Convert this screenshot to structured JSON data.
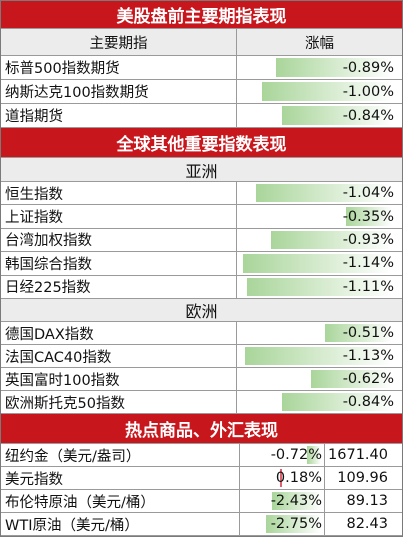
{
  "colors": {
    "header_red": "#c8161d",
    "bar_green": "#a9d59a",
    "bar_red": "#e06070"
  },
  "sec1": {
    "title": "美股盘前主要期指表现",
    "col_name": "主要期指",
    "col_change": "涨幅",
    "rows": [
      {
        "name": "标普500指数期货",
        "change": "-0.89%",
        "magnitude": 0.89
      },
      {
        "name": "纳斯达克100指数期货",
        "change": "-1.00%",
        "magnitude": 1.0
      },
      {
        "name": "道指期货",
        "change": "-0.84%",
        "magnitude": 0.84
      }
    ]
  },
  "sec2": {
    "title": "全球其他重要指数表现",
    "asia_label": "亚洲",
    "asia_rows": [
      {
        "name": "恒生指数",
        "change": "-1.04%",
        "magnitude": 1.04
      },
      {
        "name": "上证指数",
        "change": "-0.35%",
        "magnitude": 0.35
      },
      {
        "name": "台湾加权指数",
        "change": "-0.93%",
        "magnitude": 0.93
      },
      {
        "name": "韩国综合指数",
        "change": "-1.14%",
        "magnitude": 1.14
      },
      {
        "name": "日经225指数",
        "change": "-1.11%",
        "magnitude": 1.11
      }
    ],
    "europe_label": "欧洲",
    "europe_rows": [
      {
        "name": "德国DAX指数",
        "change": "-0.51%",
        "magnitude": 0.51
      },
      {
        "name": "法国CAC40指数",
        "change": "-1.13%",
        "magnitude": 1.13
      },
      {
        "name": "英国富时100指数",
        "change": "-0.62%",
        "magnitude": 0.62
      },
      {
        "name": "欧洲斯托克50指数",
        "change": "-0.84%",
        "magnitude": 0.84
      }
    ]
  },
  "sec3": {
    "title": "热点商品、外汇表现",
    "rows": [
      {
        "name": "纽约金（美元/盎司）",
        "change": "-0.72%",
        "value": "1671.40",
        "magnitude": -0.72
      },
      {
        "name": "美元指数",
        "change": "0.18%",
        "value": "109.96",
        "magnitude": 0.18
      },
      {
        "name": "布伦特原油（美元/桶）",
        "change": "-2.43%",
        "value": "89.13",
        "magnitude": -2.43
      },
      {
        "name": "WTI原油（美元/桶）",
        "change": "-2.75%",
        "value": "82.43",
        "magnitude": -2.75
      }
    ]
  }
}
